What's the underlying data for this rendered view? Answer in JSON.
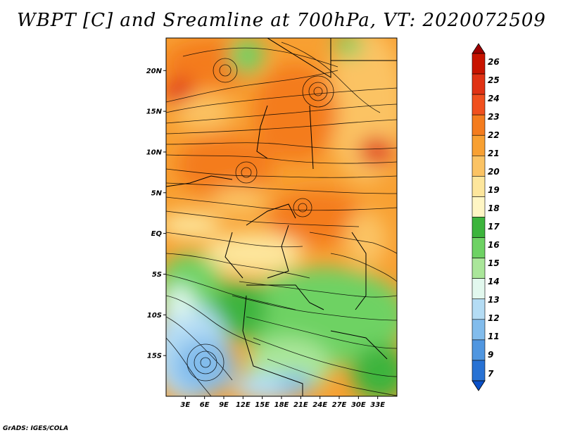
{
  "title": "WBPT [C] and Sreamline at 700hPa, VT: 2020072509",
  "footer": "GrADS: IGES/COLA",
  "map": {
    "lon_range": [
      0,
      36
    ],
    "lat_range": [
      -20,
      24
    ],
    "lat_ticks": [
      {
        "value": 20,
        "label": "20N"
      },
      {
        "value": 15,
        "label": "15N"
      },
      {
        "value": 10,
        "label": "10N"
      },
      {
        "value": 5,
        "label": "5N"
      },
      {
        "value": 0,
        "label": "EQ"
      },
      {
        "value": -5,
        "label": "5S"
      },
      {
        "value": -10,
        "label": "10S"
      },
      {
        "value": -15,
        "label": "15S"
      }
    ],
    "lon_ticks": [
      {
        "value": 3,
        "label": "3E"
      },
      {
        "value": 6,
        "label": "6E"
      },
      {
        "value": 9,
        "label": "9E"
      },
      {
        "value": 12,
        "label": "12E"
      },
      {
        "value": 15,
        "label": "15E"
      },
      {
        "value": 18,
        "label": "18E"
      },
      {
        "value": 21,
        "label": "21E"
      },
      {
        "value": 24,
        "label": "24E"
      },
      {
        "value": 27,
        "label": "27E"
      },
      {
        "value": 30,
        "label": "30E"
      },
      {
        "value": 33,
        "label": "33E"
      }
    ]
  },
  "colorbar": {
    "labels": [
      "26",
      "25",
      "24",
      "23",
      "22",
      "21",
      "20",
      "19",
      "18",
      "17",
      "16",
      "15",
      "14",
      "13",
      "12",
      "11",
      "9",
      "7"
    ],
    "colors": [
      "#9e0000",
      "#c81400",
      "#e03214",
      "#f0501e",
      "#f47c1e",
      "#f8a032",
      "#fbc364",
      "#fde69c",
      "#fff6c4",
      "#3cb43c",
      "#6ed264",
      "#aae69a",
      "#e2f8ee",
      "#b4dcf4",
      "#82bcec",
      "#5096e0",
      "#2872d4",
      "#0a50c8"
    ]
  }
}
